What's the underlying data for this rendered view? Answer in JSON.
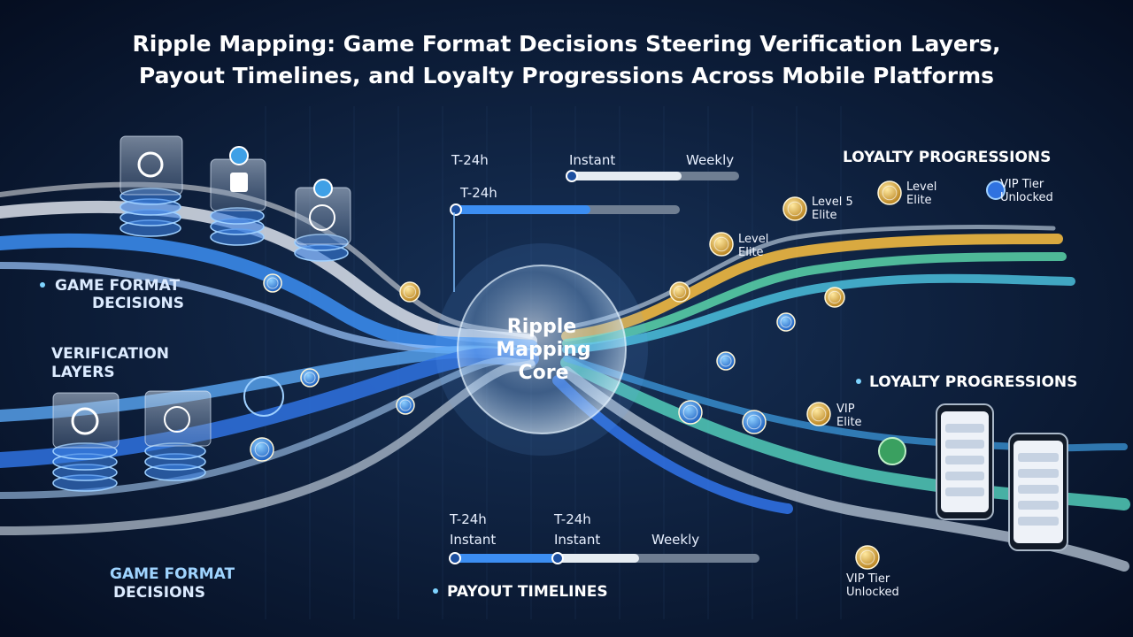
{
  "header": {
    "title": [
      "Ripple Mapping: Game Format Decisions Steering Verification Layers,",
      "Payout Timelines, and Loyalty Progressions Across Mobile Platforms"
    ]
  },
  "core": {
    "label": [
      "Ripple",
      "Mapping",
      "Core"
    ]
  },
  "sections": {
    "game_format_top": [
      "GAME FORMAT",
      "DECISIONS"
    ],
    "verification": [
      "VERIFICATION",
      "LAYERS"
    ],
    "game_format_bottom": [
      "GAME FORMAT",
      "DECISIONS"
    ],
    "loyalty_top": "LOYALTY PROGRESSIONS",
    "loyalty_mid": "LOYALTY PROGRESSIONS",
    "payout": "PAYOUT TIMELINES"
  },
  "top_timeline": {
    "labels": [
      "T-24h",
      "Instant",
      "Weekly"
    ],
    "bar_label": "T-24h"
  },
  "bottom_timeline": {
    "row1": [
      "T-24h",
      "T-24h"
    ],
    "row2": [
      "Instant",
      "Instant",
      "Weekly"
    ]
  },
  "badges": [
    {
      "lines": [
        "Level 5",
        "Elite"
      ]
    },
    {
      "lines": [
        "Level",
        "Elite"
      ]
    },
    {
      "lines": [
        "VIP Tier",
        "Unlocked"
      ]
    },
    {
      "lines": [
        "Level",
        "Elite"
      ]
    },
    {
      "lines": [
        "VIP",
        "Elite"
      ]
    },
    {
      "lines": [
        "VIP Tier",
        "Unlocked"
      ]
    }
  ]
}
